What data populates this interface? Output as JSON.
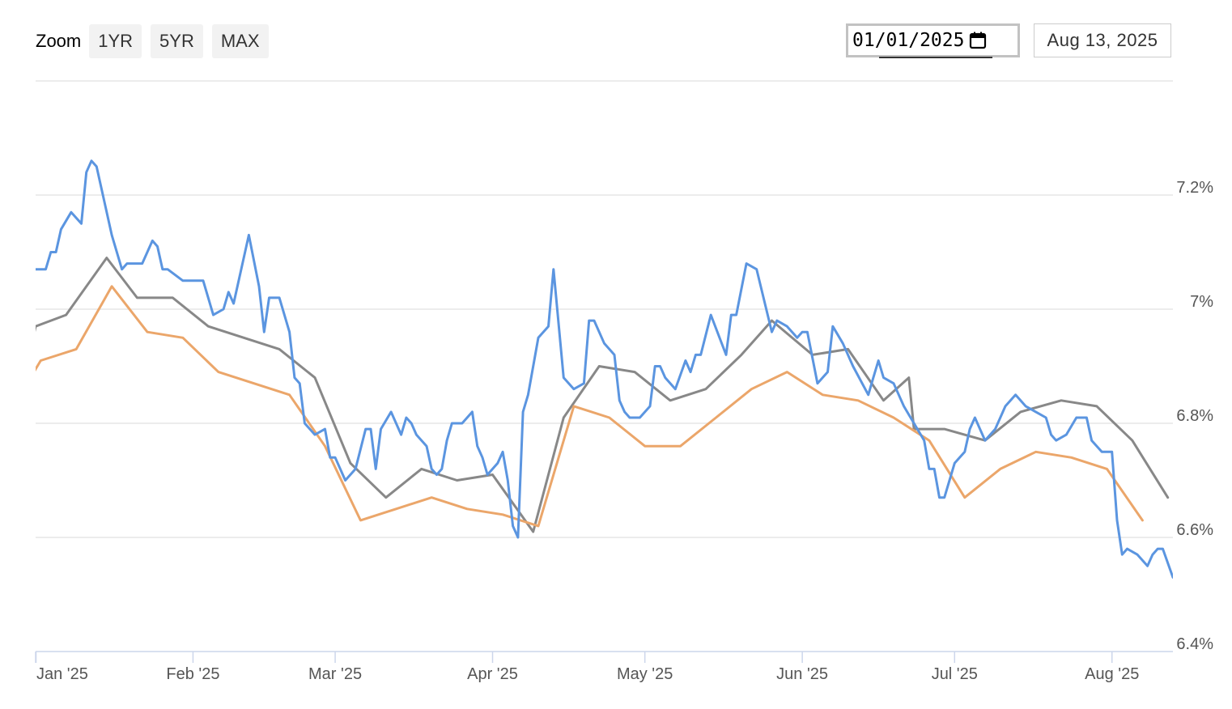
{
  "toolbar": {
    "zoom_label": "Zoom",
    "buttons": [
      "1YR",
      "5YR",
      "MAX"
    ],
    "date_from": "01/01/2025",
    "date_to": "Aug 13, 2025"
  },
  "chart_data": {
    "type": "line",
    "x_axis_type": "date",
    "x_ticks": [
      {
        "label": "Jan '25",
        "date": "2025-01-01"
      },
      {
        "label": "Feb '25",
        "date": "2025-02-01"
      },
      {
        "label": "Mar '25",
        "date": "2025-03-01"
      },
      {
        "label": "Apr '25",
        "date": "2025-04-01"
      },
      {
        "label": "May '25",
        "date": "2025-05-01"
      },
      {
        "label": "Jun '25",
        "date": "2025-06-01"
      },
      {
        "label": "Jul '25",
        "date": "2025-07-01"
      },
      {
        "label": "Aug '25",
        "date": "2025-08-01"
      }
    ],
    "xlim": [
      "2025-01-01",
      "2025-08-13"
    ],
    "ylim": [
      6.4,
      7.4
    ],
    "y_ticks": [
      {
        "value": 6.4,
        "label": "6.4%"
      },
      {
        "value": 6.6,
        "label": "6.6%"
      },
      {
        "value": 6.8,
        "label": "6.8%"
      },
      {
        "value": 7.0,
        "label": "7%"
      },
      {
        "value": 7.2,
        "label": "7.2%"
      }
    ],
    "y_axis_position": "right",
    "grid": true,
    "series": [
      {
        "color": "#5b95e0",
        "points": [
          [
            "2025-01-01",
            7.07
          ],
          [
            "2025-01-03",
            7.07
          ],
          [
            "2025-01-04",
            7.1
          ],
          [
            "2025-01-05",
            7.1
          ],
          [
            "2025-01-06",
            7.14
          ],
          [
            "2025-01-08",
            7.17
          ],
          [
            "2025-01-10",
            7.15
          ],
          [
            "2025-01-11",
            7.24
          ],
          [
            "2025-01-12",
            7.26
          ],
          [
            "2025-01-13",
            7.25
          ],
          [
            "2025-01-16",
            7.13
          ],
          [
            "2025-01-18",
            7.07
          ],
          [
            "2025-01-19",
            7.08
          ],
          [
            "2025-01-22",
            7.08
          ],
          [
            "2025-01-24",
            7.12
          ],
          [
            "2025-01-25",
            7.11
          ],
          [
            "2025-01-26",
            7.07
          ],
          [
            "2025-01-27",
            7.07
          ],
          [
            "2025-01-30",
            7.05
          ],
          [
            "2025-02-03",
            7.05
          ],
          [
            "2025-02-05",
            6.99
          ],
          [
            "2025-02-07",
            7.0
          ],
          [
            "2025-02-08",
            7.03
          ],
          [
            "2025-02-09",
            7.01
          ],
          [
            "2025-02-12",
            7.13
          ],
          [
            "2025-02-14",
            7.04
          ],
          [
            "2025-02-15",
            6.96
          ],
          [
            "2025-02-16",
            7.02
          ],
          [
            "2025-02-18",
            7.02
          ],
          [
            "2025-02-20",
            6.96
          ],
          [
            "2025-02-21",
            6.88
          ],
          [
            "2025-02-22",
            6.87
          ],
          [
            "2025-02-23",
            6.8
          ],
          [
            "2025-02-25",
            6.78
          ],
          [
            "2025-02-27",
            6.79
          ],
          [
            "2025-02-28",
            6.74
          ],
          [
            "2025-03-01",
            6.74
          ],
          [
            "2025-03-03",
            6.7
          ],
          [
            "2025-03-05",
            6.72
          ],
          [
            "2025-03-07",
            6.79
          ],
          [
            "2025-03-08",
            6.79
          ],
          [
            "2025-03-09",
            6.72
          ],
          [
            "2025-03-10",
            6.79
          ],
          [
            "2025-03-12",
            6.82
          ],
          [
            "2025-03-14",
            6.78
          ],
          [
            "2025-03-15",
            6.81
          ],
          [
            "2025-03-16",
            6.8
          ],
          [
            "2025-03-17",
            6.78
          ],
          [
            "2025-03-19",
            6.76
          ],
          [
            "2025-03-20",
            6.72
          ],
          [
            "2025-03-21",
            6.71
          ],
          [
            "2025-03-22",
            6.72
          ],
          [
            "2025-03-23",
            6.77
          ],
          [
            "2025-03-24",
            6.8
          ],
          [
            "2025-03-26",
            6.8
          ],
          [
            "2025-03-28",
            6.82
          ],
          [
            "2025-03-29",
            6.76
          ],
          [
            "2025-03-30",
            6.74
          ],
          [
            "2025-03-31",
            6.71
          ],
          [
            "2025-04-02",
            6.73
          ],
          [
            "2025-04-03",
            6.75
          ],
          [
            "2025-04-04",
            6.7
          ],
          [
            "2025-04-05",
            6.62
          ],
          [
            "2025-04-06",
            6.6
          ],
          [
            "2025-04-07",
            6.82
          ],
          [
            "2025-04-08",
            6.85
          ],
          [
            "2025-04-10",
            6.95
          ],
          [
            "2025-04-12",
            6.97
          ],
          [
            "2025-04-13",
            7.07
          ],
          [
            "2025-04-15",
            6.88
          ],
          [
            "2025-04-17",
            6.86
          ],
          [
            "2025-04-19",
            6.87
          ],
          [
            "2025-04-20",
            6.98
          ],
          [
            "2025-04-21",
            6.98
          ],
          [
            "2025-04-23",
            6.94
          ],
          [
            "2025-04-25",
            6.92
          ],
          [
            "2025-04-26",
            6.84
          ],
          [
            "2025-04-27",
            6.82
          ],
          [
            "2025-04-28",
            6.81
          ],
          [
            "2025-04-30",
            6.81
          ],
          [
            "2025-05-02",
            6.83
          ],
          [
            "2025-05-03",
            6.9
          ],
          [
            "2025-05-04",
            6.9
          ],
          [
            "2025-05-05",
            6.88
          ],
          [
            "2025-05-07",
            6.86
          ],
          [
            "2025-05-09",
            6.91
          ],
          [
            "2025-05-10",
            6.89
          ],
          [
            "2025-05-11",
            6.92
          ],
          [
            "2025-05-12",
            6.92
          ],
          [
            "2025-05-14",
            6.99
          ],
          [
            "2025-05-17",
            6.92
          ],
          [
            "2025-05-18",
            6.99
          ],
          [
            "2025-05-19",
            6.99
          ],
          [
            "2025-05-21",
            7.08
          ],
          [
            "2025-05-23",
            7.07
          ],
          [
            "2025-05-26",
            6.96
          ],
          [
            "2025-05-27",
            6.98
          ],
          [
            "2025-05-29",
            6.97
          ],
          [
            "2025-05-31",
            6.95
          ],
          [
            "2025-06-01",
            6.96
          ],
          [
            "2025-06-02",
            6.96
          ],
          [
            "2025-06-04",
            6.87
          ],
          [
            "2025-06-06",
            6.89
          ],
          [
            "2025-06-07",
            6.97
          ],
          [
            "2025-06-09",
            6.94
          ],
          [
            "2025-06-11",
            6.9
          ],
          [
            "2025-06-14",
            6.85
          ],
          [
            "2025-06-15",
            6.88
          ],
          [
            "2025-06-16",
            6.91
          ],
          [
            "2025-06-17",
            6.88
          ],
          [
            "2025-06-19",
            6.87
          ],
          [
            "2025-06-21",
            6.83
          ],
          [
            "2025-06-23",
            6.8
          ],
          [
            "2025-06-25",
            6.77
          ],
          [
            "2025-06-26",
            6.72
          ],
          [
            "2025-06-27",
            6.72
          ],
          [
            "2025-06-28",
            6.67
          ],
          [
            "2025-06-29",
            6.67
          ],
          [
            "2025-07-01",
            6.73
          ],
          [
            "2025-07-03",
            6.75
          ],
          [
            "2025-07-04",
            6.79
          ],
          [
            "2025-07-05",
            6.81
          ],
          [
            "2025-07-07",
            6.77
          ],
          [
            "2025-07-09",
            6.79
          ],
          [
            "2025-07-11",
            6.83
          ],
          [
            "2025-07-13",
            6.85
          ],
          [
            "2025-07-15",
            6.83
          ],
          [
            "2025-07-17",
            6.82
          ],
          [
            "2025-07-19",
            6.81
          ],
          [
            "2025-07-20",
            6.78
          ],
          [
            "2025-07-21",
            6.77
          ],
          [
            "2025-07-23",
            6.78
          ],
          [
            "2025-07-25",
            6.81
          ],
          [
            "2025-07-27",
            6.81
          ],
          [
            "2025-07-28",
            6.77
          ],
          [
            "2025-07-30",
            6.75
          ],
          [
            "2025-08-01",
            6.75
          ],
          [
            "2025-08-02",
            6.63
          ],
          [
            "2025-08-03",
            6.57
          ],
          [
            "2025-08-04",
            6.58
          ],
          [
            "2025-08-06",
            6.57
          ],
          [
            "2025-08-08",
            6.55
          ],
          [
            "2025-08-09",
            6.57
          ],
          [
            "2025-08-10",
            6.58
          ],
          [
            "2025-08-11",
            6.58
          ],
          [
            "2025-08-13",
            6.53
          ]
        ]
      },
      {
        "color": "#888888",
        "points": [
          [
            "2024-12-31",
            6.93
          ],
          [
            "2025-01-01",
            6.97
          ],
          [
            "2025-01-07",
            6.99
          ],
          [
            "2025-01-15",
            7.09
          ],
          [
            "2025-01-21",
            7.02
          ],
          [
            "2025-01-28",
            7.02
          ],
          [
            "2025-02-04",
            6.97
          ],
          [
            "2025-02-11",
            6.95
          ],
          [
            "2025-02-18",
            6.93
          ],
          [
            "2025-02-25",
            6.88
          ],
          [
            "2025-03-04",
            6.73
          ],
          [
            "2025-03-11",
            6.67
          ],
          [
            "2025-03-18",
            6.72
          ],
          [
            "2025-03-25",
            6.7
          ],
          [
            "2025-04-01",
            6.71
          ],
          [
            "2025-04-09",
            6.61
          ],
          [
            "2025-04-15",
            6.81
          ],
          [
            "2025-04-22",
            6.9
          ],
          [
            "2025-04-29",
            6.89
          ],
          [
            "2025-05-06",
            6.84
          ],
          [
            "2025-05-13",
            6.86
          ],
          [
            "2025-05-20",
            6.92
          ],
          [
            "2025-05-26",
            6.98
          ],
          [
            "2025-06-03",
            6.92
          ],
          [
            "2025-06-10",
            6.93
          ],
          [
            "2025-06-17",
            6.84
          ],
          [
            "2025-06-22",
            6.88
          ],
          [
            "2025-06-23",
            6.79
          ],
          [
            "2025-06-29",
            6.79
          ],
          [
            "2025-07-07",
            6.77
          ],
          [
            "2025-07-14",
            6.82
          ],
          [
            "2025-07-22",
            6.84
          ],
          [
            "2025-07-29",
            6.83
          ],
          [
            "2025-08-05",
            6.77
          ],
          [
            "2025-08-12",
            6.67
          ]
        ]
      },
      {
        "color": "#eba66a",
        "points": [
          [
            "2024-12-31",
            6.88
          ],
          [
            "2025-01-02",
            6.91
          ],
          [
            "2025-01-09",
            6.93
          ],
          [
            "2025-01-16",
            7.04
          ],
          [
            "2025-01-23",
            6.96
          ],
          [
            "2025-01-30",
            6.95
          ],
          [
            "2025-02-06",
            6.89
          ],
          [
            "2025-02-13",
            6.87
          ],
          [
            "2025-02-20",
            6.85
          ],
          [
            "2025-02-27",
            6.76
          ],
          [
            "2025-03-06",
            6.63
          ],
          [
            "2025-03-13",
            6.65
          ],
          [
            "2025-03-20",
            6.67
          ],
          [
            "2025-03-27",
            6.65
          ],
          [
            "2025-04-03",
            6.64
          ],
          [
            "2025-04-10",
            6.62
          ],
          [
            "2025-04-17",
            6.83
          ],
          [
            "2025-04-24",
            6.81
          ],
          [
            "2025-05-01",
            6.76
          ],
          [
            "2025-05-08",
            6.76
          ],
          [
            "2025-05-15",
            6.81
          ],
          [
            "2025-05-22",
            6.86
          ],
          [
            "2025-05-29",
            6.89
          ],
          [
            "2025-06-05",
            6.85
          ],
          [
            "2025-06-12",
            6.84
          ],
          [
            "2025-06-19",
            6.81
          ],
          [
            "2025-06-26",
            6.77
          ],
          [
            "2025-07-03",
            6.67
          ],
          [
            "2025-07-10",
            6.72
          ],
          [
            "2025-07-17",
            6.75
          ],
          [
            "2025-07-24",
            6.74
          ],
          [
            "2025-07-31",
            6.72
          ],
          [
            "2025-08-07",
            6.63
          ]
        ]
      }
    ]
  }
}
